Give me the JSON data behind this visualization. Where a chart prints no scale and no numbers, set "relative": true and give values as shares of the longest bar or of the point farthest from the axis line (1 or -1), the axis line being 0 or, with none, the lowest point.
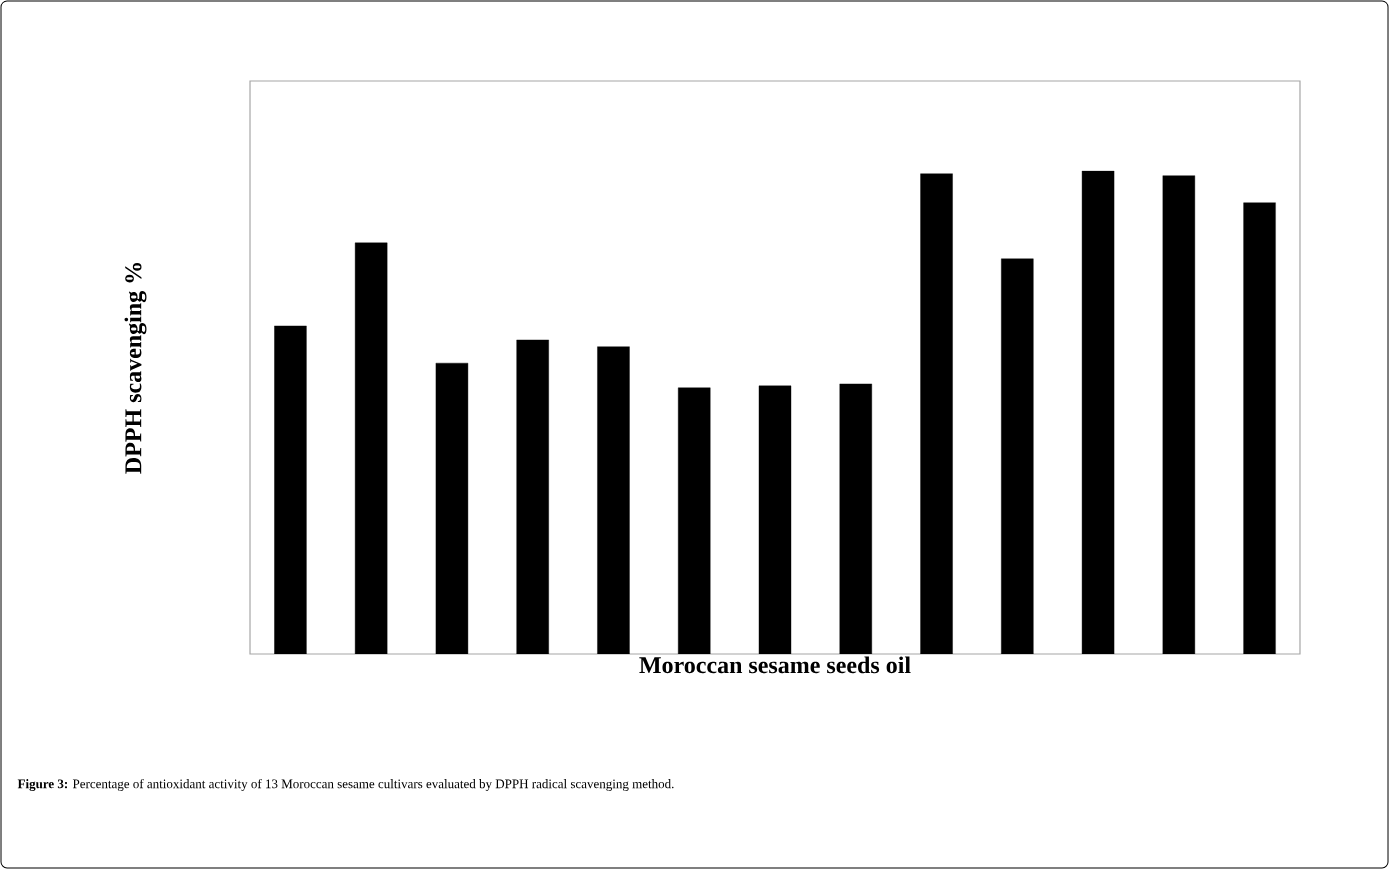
{
  "chart_data": {
    "type": "bar",
    "relative": true,
    "xlabel": "Moroccan sesame seeds oil",
    "ylabel": "DPPH scavenging %",
    "categories": [
      null,
      null,
      null,
      null,
      null,
      null,
      null,
      null,
      null,
      null,
      null,
      null,
      null
    ],
    "values": [
      0.679,
      0.851,
      0.602,
      0.65,
      0.636,
      0.551,
      0.555,
      0.559,
      0.994,
      0.818,
      1.0,
      0.99,
      0.934
    ],
    "color": "#000000",
    "annotations": [
      "**Figure 3:** Percentage of antioxidant activity of 13 Moroccan sesame cultivars evaluated by DPPH radical scavenging method."
    ]
  }
}
